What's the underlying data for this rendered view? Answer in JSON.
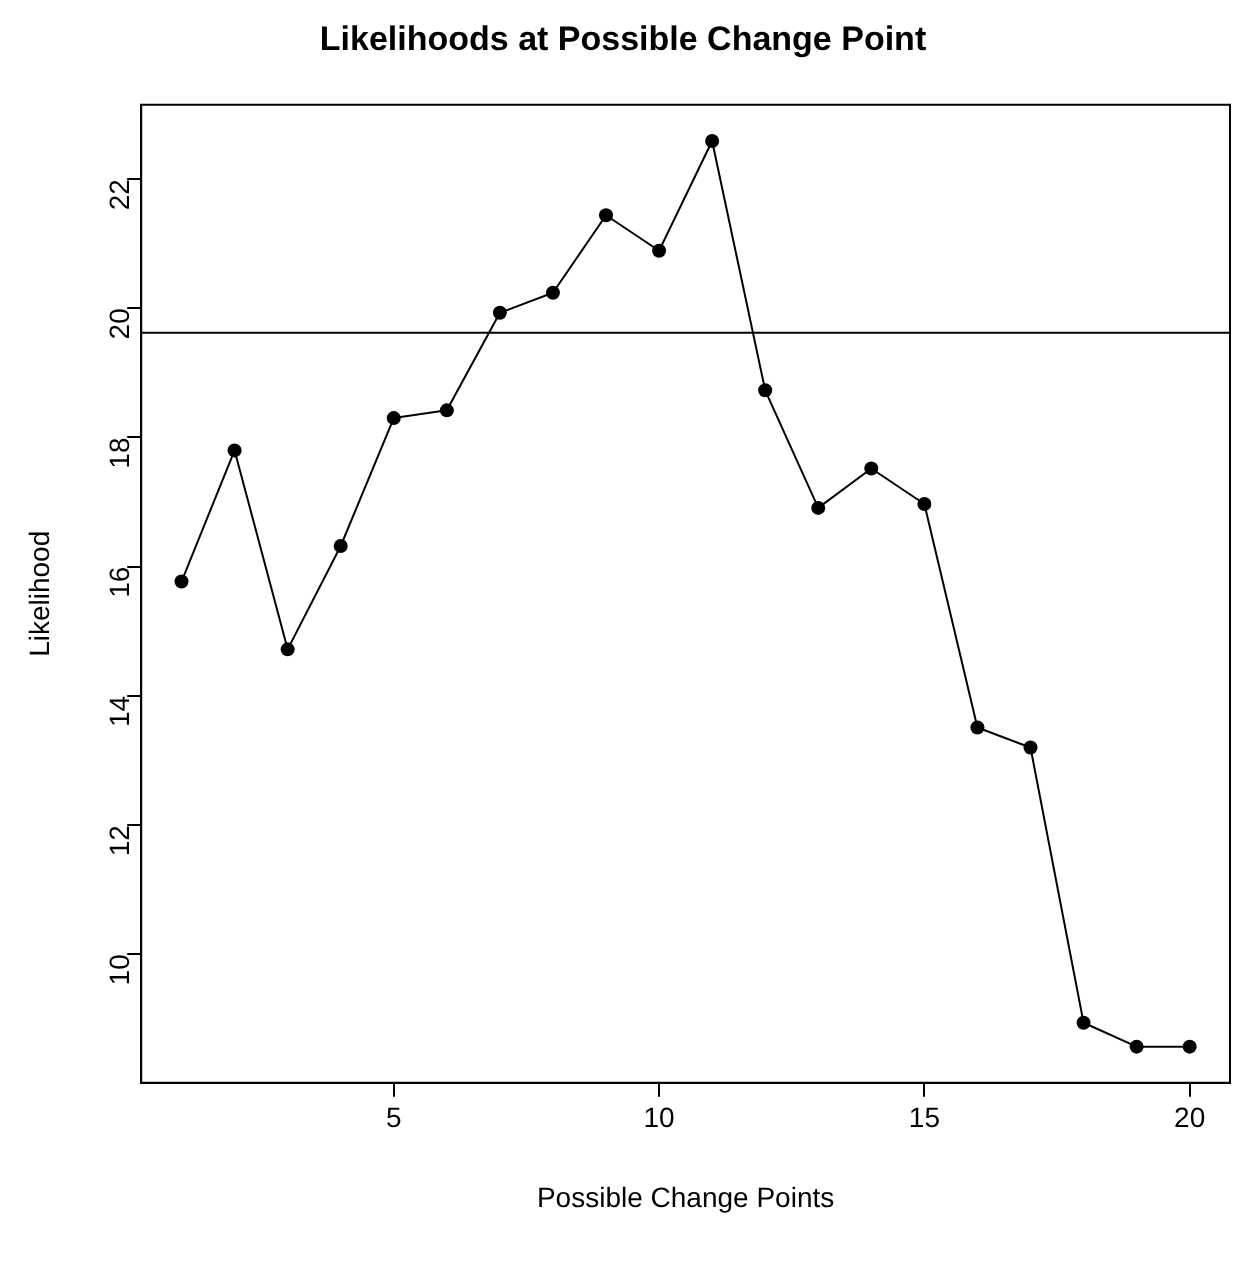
{
  "chart_data": {
    "type": "line",
    "title": "Likelihoods at Possible Change Point",
    "xlabel": "Possible Change Points",
    "ylabel": "Likelihood",
    "x": [
      1,
      2,
      3,
      4,
      5,
      6,
      7,
      8,
      9,
      10,
      11,
      12,
      13,
      14,
      15,
      16,
      17,
      18,
      19,
      20
    ],
    "values": [
      15.77,
      17.8,
      14.72,
      16.32,
      18.3,
      18.42,
      19.93,
      20.24,
      21.44,
      20.89,
      22.59,
      18.73,
      16.91,
      17.52,
      16.97,
      13.51,
      13.2,
      8.94,
      8.57,
      8.57
    ],
    "color": "#000000",
    "marker": "circle",
    "line_style": "solid",
    "grid": false,
    "legend": false,
    "xlim": [
      0.24,
      20.76
    ],
    "xticks": [
      5,
      10,
      15,
      20
    ],
    "ylim": [
      8.01,
      23.15
    ],
    "yticks": [
      10,
      12,
      14,
      16,
      18,
      20,
      22
    ],
    "ref_lines": [
      {
        "axis": "y",
        "value": 19.62,
        "color": "#000000"
      }
    ]
  }
}
